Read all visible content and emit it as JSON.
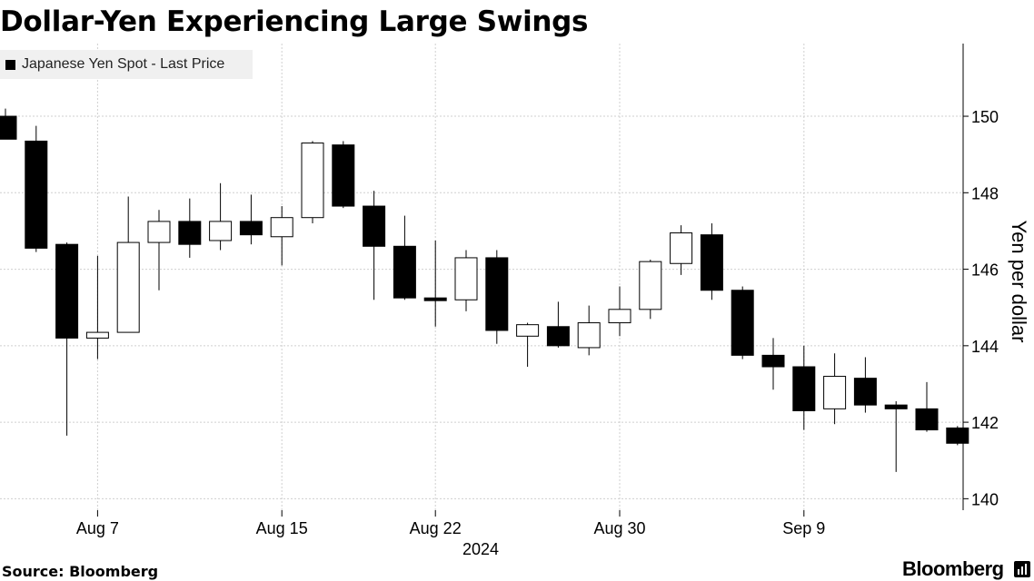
{
  "chart_data": {
    "type": "candlestick",
    "title": "Dollar-Yen Experiencing Large Swings",
    "ylabel": "Yen per dollar",
    "xlabel_year": "2024",
    "ylim": [
      139.7,
      151.9
    ],
    "yticks": [
      140,
      142,
      144,
      146,
      148,
      150
    ],
    "legend": {
      "label": "Japanese Yen Spot - Last Price",
      "position": "top-left"
    },
    "grid": true,
    "xtick_labels": [
      {
        "label": "Aug 7",
        "index": 3
      },
      {
        "label": "Aug 15",
        "index": 9
      },
      {
        "label": "Aug 22",
        "index": 14
      },
      {
        "label": "Aug 30",
        "index": 20
      },
      {
        "label": "Sep 9",
        "index": 26
      }
    ],
    "candles": [
      {
        "open": 150.0,
        "high": 150.2,
        "low": 149.4,
        "close": 149.4
      },
      {
        "open": 149.35,
        "high": 149.75,
        "low": 146.45,
        "close": 146.55
      },
      {
        "open": 146.65,
        "high": 146.7,
        "low": 141.65,
        "close": 144.2
      },
      {
        "open": 144.2,
        "high": 146.35,
        "low": 143.65,
        "close": 144.35
      },
      {
        "open": 144.35,
        "high": 147.9,
        "low": 144.35,
        "close": 146.7
      },
      {
        "open": 146.7,
        "high": 147.55,
        "low": 145.45,
        "close": 147.25
      },
      {
        "open": 147.25,
        "high": 147.85,
        "low": 146.3,
        "close": 146.65
      },
      {
        "open": 146.75,
        "high": 148.25,
        "low": 146.5,
        "close": 147.25
      },
      {
        "open": 147.25,
        "high": 147.95,
        "low": 146.65,
        "close": 146.9
      },
      {
        "open": 146.85,
        "high": 147.65,
        "low": 146.1,
        "close": 147.35
      },
      {
        "open": 147.35,
        "high": 149.35,
        "low": 147.2,
        "close": 149.3
      },
      {
        "open": 149.25,
        "high": 149.35,
        "low": 147.6,
        "close": 147.65
      },
      {
        "open": 147.65,
        "high": 148.05,
        "low": 145.2,
        "close": 146.6
      },
      {
        "open": 146.6,
        "high": 147.4,
        "low": 145.2,
        "close": 145.25
      },
      {
        "open": 145.25,
        "high": 146.75,
        "low": 144.5,
        "close": 145.2
      },
      {
        "open": 145.2,
        "high": 146.5,
        "low": 144.9,
        "close": 146.3
      },
      {
        "open": 146.3,
        "high": 146.5,
        "low": 144.05,
        "close": 144.4
      },
      {
        "open": 144.25,
        "high": 144.6,
        "low": 143.45,
        "close": 144.55
      },
      {
        "open": 144.5,
        "high": 145.15,
        "low": 143.95,
        "close": 144.0
      },
      {
        "open": 143.95,
        "high": 145.05,
        "low": 143.75,
        "close": 144.6
      },
      {
        "open": 144.6,
        "high": 145.55,
        "low": 144.25,
        "close": 144.95
      },
      {
        "open": 144.95,
        "high": 146.25,
        "low": 144.7,
        "close": 146.2
      },
      {
        "open": 146.15,
        "high": 147.15,
        "low": 145.85,
        "close": 146.95
      },
      {
        "open": 146.9,
        "high": 147.2,
        "low": 145.2,
        "close": 145.45
      },
      {
        "open": 145.45,
        "high": 145.55,
        "low": 143.65,
        "close": 143.75
      },
      {
        "open": 143.75,
        "high": 144.2,
        "low": 142.85,
        "close": 143.45
      },
      {
        "open": 143.45,
        "high": 144.0,
        "low": 141.8,
        "close": 142.3
      },
      {
        "open": 142.35,
        "high": 143.8,
        "low": 141.95,
        "close": 143.2
      },
      {
        "open": 143.15,
        "high": 143.7,
        "low": 142.25,
        "close": 142.45
      },
      {
        "open": 142.45,
        "high": 142.55,
        "low": 140.7,
        "close": 142.35
      },
      {
        "open": 142.35,
        "high": 143.05,
        "low": 141.75,
        "close": 141.8
      },
      {
        "open": 141.85,
        "high": 141.9,
        "low": 141.4,
        "close": 141.45
      }
    ]
  },
  "footer": {
    "source": "Source: Bloomberg",
    "brand": "Bloomberg"
  }
}
